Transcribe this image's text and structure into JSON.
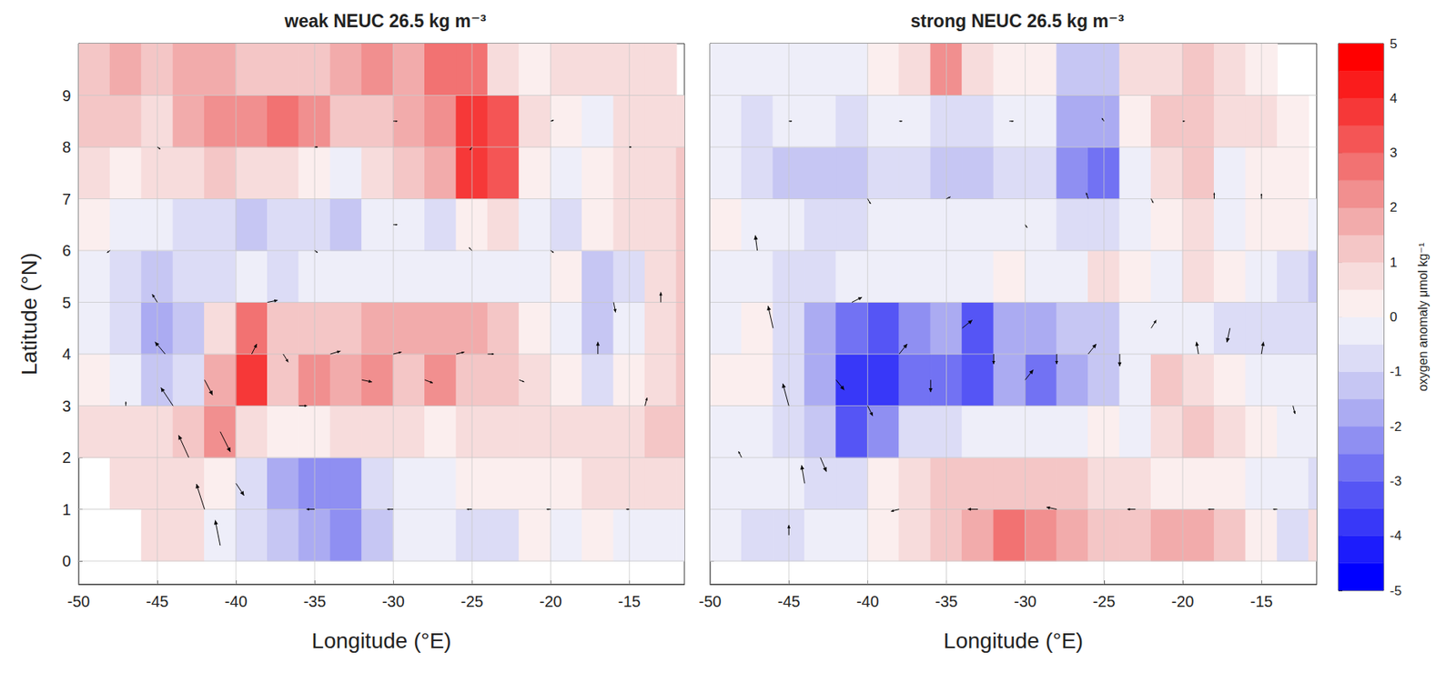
{
  "chart_data": [
    {
      "type": "heatmap",
      "title": "weak NEUC 26.5 kg m⁻³",
      "xlabel": "Longitude (°E)",
      "ylabel": "Latitude (°N)",
      "xlim": [
        -50,
        -11.5
      ],
      "ylim": [
        -0.45,
        10
      ],
      "xticks": [
        -50,
        -45,
        -40,
        -35,
        -30,
        -25,
        -20,
        -15
      ],
      "yticks": [
        0,
        1,
        2,
        3,
        4,
        5,
        6,
        7,
        8,
        9
      ],
      "grid": true,
      "lon": [
        -49,
        -47,
        -45,
        -43,
        -41,
        -39,
        -37,
        -35,
        -33,
        -31,
        -29,
        -27,
        -25,
        -23,
        -21,
        -19,
        -17,
        -15,
        -13,
        -11
      ],
      "lat": [
        0.5,
        1.5,
        2.5,
        3.5,
        4.5,
        5.5,
        6.5,
        7.5,
        8.5,
        9.5
      ],
      "oxygen_anomaly": [
        [
          null,
          null,
          0.5,
          0.5,
          -0.5,
          -1,
          -1.5,
          -2,
          -2.5,
          -1.5,
          -0.5,
          -0.5,
          -1,
          -1,
          0,
          -0.5,
          0,
          -0.5,
          -0.5,
          -0.5
        ],
        [
          null,
          0.5,
          0.5,
          0.5,
          0,
          -1,
          -2,
          -2.5,
          -2.5,
          -1,
          -0.5,
          -0.5,
          0,
          0,
          0,
          0,
          0.5,
          0.5,
          0.5,
          0.5
        ],
        [
          0.5,
          0.5,
          0.5,
          1,
          2,
          0.5,
          0,
          0,
          0.5,
          0.5,
          0.5,
          0,
          0.5,
          0.5,
          0.5,
          0.5,
          0.5,
          0.5,
          1,
          1
        ],
        [
          0,
          -0.5,
          -1.5,
          -1,
          1.5,
          3.5,
          1,
          2,
          1.5,
          2,
          1,
          2,
          1,
          1,
          0.5,
          0,
          -1,
          0,
          0.5,
          1
        ],
        [
          -0.5,
          -1,
          -2,
          -1.5,
          0.5,
          2.5,
          1,
          1,
          1,
          1.5,
          1.5,
          1.5,
          1.5,
          1,
          0,
          -0.5,
          -1.5,
          -0.5,
          0.5,
          1
        ],
        [
          -0.5,
          -1,
          -1.5,
          -1,
          -1,
          -0.5,
          -1,
          -0.5,
          -0.5,
          -0.5,
          -0.5,
          -0.5,
          -0.5,
          -0.5,
          -0.5,
          0,
          -1.5,
          -1,
          0.5,
          1
        ],
        [
          0,
          -0.5,
          -0.5,
          -1,
          -1,
          -1.5,
          -1,
          -1,
          -1.5,
          -0.5,
          -0.5,
          -1,
          0,
          0.5,
          -0.5,
          -1,
          0,
          0.5,
          0.5,
          1
        ],
        [
          0.5,
          0,
          0.5,
          0.5,
          1,
          0.5,
          0.5,
          0,
          -0.5,
          0.5,
          1,
          1.5,
          3.5,
          3,
          0,
          -0.5,
          0,
          0.5,
          0.5,
          1
        ],
        [
          1,
          1,
          0.5,
          1.5,
          2,
          2,
          2.5,
          2,
          1,
          1,
          1.5,
          2,
          3.5,
          3,
          0.5,
          0,
          -0.5,
          0.5,
          0.5,
          0.5
        ],
        [
          1,
          1.5,
          1,
          1.5,
          1.5,
          1,
          1,
          1,
          1.5,
          2,
          1.5,
          2.5,
          2.5,
          0.5,
          0,
          0.5,
          0.5,
          0.5,
          0.5,
          null
        ]
      ],
      "vectors": {
        "lon": [
          -41,
          -42,
          -43,
          -44,
          -44.5,
          -45,
          -42,
          -41,
          -40,
          -39,
          -38,
          -37,
          -36,
          -34,
          -32,
          -30,
          -28,
          -26,
          -24,
          -22,
          -35,
          -30,
          -25,
          -20,
          -15,
          -35,
          -30,
          -25,
          -20,
          -17,
          -16,
          -14,
          -35,
          -30,
          -25,
          -20,
          -15,
          -45,
          -48,
          -47,
          -13
        ],
        "lat": [
          0.3,
          1,
          2,
          3,
          4,
          5,
          3.5,
          2.5,
          1.5,
          4,
          5,
          4,
          3,
          4,
          3.5,
          4,
          3.5,
          4,
          4,
          3.5,
          1,
          1,
          1,
          1,
          1,
          6,
          6.5,
          6,
          6,
          4,
          5,
          3,
          8,
          8.5,
          8,
          8.5,
          8,
          8,
          6,
          3,
          5
        ],
        "u": [
          -5,
          -8,
          -10,
          -12,
          -10,
          -5,
          8,
          10,
          8,
          5,
          10,
          5,
          8,
          10,
          10,
          8,
          8,
          8,
          6,
          5,
          -8,
          -6,
          -5,
          -4,
          -3,
          3,
          4,
          -3,
          3,
          0,
          2,
          2,
          3,
          4,
          -2,
          3,
          2,
          3,
          -3,
          0,
          0
        ],
        "v": [
          25,
          25,
          22,
          18,
          12,
          8,
          -15,
          -20,
          -12,
          10,
          2,
          -8,
          0,
          3,
          -2,
          2,
          -3,
          2,
          0,
          -2,
          0,
          0,
          0,
          0,
          0,
          -2,
          0,
          3,
          -2,
          12,
          -10,
          8,
          0,
          0,
          -3,
          1,
          0,
          -2,
          -2,
          4,
          10
        ]
      }
    },
    {
      "type": "heatmap",
      "title": "strong NEUC 26.5 kg m⁻³",
      "xlabel": "Longitude (°E)",
      "xlim": [
        -50,
        -11.5
      ],
      "ylim": [
        -0.45,
        10
      ],
      "xticks": [
        -50,
        -45,
        -40,
        -35,
        -30,
        -25,
        -20,
        -15
      ],
      "yticks": [
        0,
        1,
        2,
        3,
        4,
        5,
        6,
        7,
        8,
        9
      ],
      "grid": true,
      "tick_labels": "x",
      "lon": [
        -49,
        -47,
        -45,
        -43,
        -41,
        -39,
        -37,
        -35,
        -33,
        -31,
        -29,
        -27,
        -25,
        -23,
        -21,
        -19,
        -17,
        -15,
        -13,
        -11
      ],
      "lat": [
        0.5,
        1.5,
        2.5,
        3.5,
        4.5,
        5.5,
        6.5,
        7.5,
        8.5,
        9.5
      ],
      "oxygen_anomaly": [
        [
          -0.5,
          -1,
          -1,
          -0.5,
          -0.5,
          0,
          0.5,
          1,
          1.5,
          2.5,
          2,
          1.5,
          1,
          1,
          1.5,
          1.5,
          1,
          0,
          -1,
          0.5
        ],
        [
          -0.5,
          -0.5,
          -0.5,
          -1,
          -1,
          0,
          0.5,
          1,
          1,
          1,
          1,
          1,
          0.5,
          0.5,
          0,
          0,
          0,
          -0.5,
          -0.5,
          -1
        ],
        [
          -0.5,
          -0.5,
          -1,
          -1.5,
          -3.5,
          -2.5,
          -1,
          -1,
          -0.5,
          -0.5,
          -0.5,
          -0.5,
          0,
          -0.5,
          0.5,
          1,
          0.5,
          0,
          -0.5,
          -0.5
        ],
        [
          0,
          0,
          -1,
          -2,
          -4,
          -4,
          -3,
          -3,
          -3.5,
          -2,
          -3,
          -2,
          -1.5,
          -0.5,
          1,
          0.5,
          0,
          -0.5,
          -0.5,
          -0.5
        ],
        [
          -0.5,
          0,
          -1,
          -2,
          -3,
          -3.5,
          -2.5,
          -2,
          -3.5,
          -2,
          -2,
          -1.5,
          -1.5,
          -0.5,
          -0.5,
          -0.5,
          -1,
          -1,
          -1,
          -1
        ],
        [
          -0.5,
          -0.5,
          -1,
          -1,
          -0.5,
          -0.5,
          -0.5,
          -0.5,
          -0.5,
          0,
          -0.5,
          -0.5,
          0.5,
          0,
          -0.5,
          0.5,
          0,
          -0.5,
          -1,
          -1.5
        ],
        [
          0,
          -0.5,
          -0.5,
          -1,
          -1,
          -0.5,
          -0.5,
          -0.5,
          -0.5,
          -0.5,
          -0.5,
          -1,
          -1,
          -0.5,
          0,
          0.5,
          -0.5,
          0,
          0,
          -0.5
        ],
        [
          -0.5,
          -1,
          -1.5,
          -1.5,
          -1.5,
          -1,
          -1,
          -1.5,
          -1.5,
          -1,
          -1,
          -2.5,
          -3,
          -0.5,
          0.5,
          1,
          -0.5,
          0,
          0,
          null
        ],
        [
          -0.5,
          -1,
          -0.5,
          -0.5,
          -1,
          -0.5,
          -0.5,
          -1,
          -1,
          -0.5,
          -0.5,
          -2,
          -2,
          0,
          1,
          1,
          0.5,
          0.5,
          0,
          null
        ],
        [
          -0.5,
          -0.5,
          -0.5,
          -0.5,
          -0.5,
          0,
          0.5,
          2,
          0.5,
          0,
          0,
          -1.5,
          -1.5,
          0.5,
          0.5,
          1,
          0.5,
          0,
          null,
          null
        ]
      ],
      "vectors": {
        "lon": [
          -45,
          -44,
          -45,
          -46,
          -47,
          -43,
          -42,
          -41,
          -40,
          -38,
          -36,
          -34,
          -32,
          -30,
          -28,
          -26,
          -24,
          -22,
          -19,
          -17,
          -15,
          -13,
          -38,
          -33,
          -28,
          -23,
          -18,
          -14,
          -40,
          -35,
          -30,
          -26,
          -22,
          -18,
          -45,
          -38,
          -31,
          -25,
          -20,
          -15,
          -48
        ],
        "lat": [
          0.5,
          1.5,
          3,
          4.5,
          6,
          2,
          3.5,
          5,
          3,
          4,
          3.5,
          4.5,
          4,
          3.5,
          4,
          4,
          4,
          4.5,
          4,
          4.5,
          4,
          3,
          1,
          1,
          1,
          1,
          1,
          1,
          7,
          7,
          6.5,
          7,
          7,
          7,
          8.5,
          8.5,
          8.5,
          8.5,
          8.5,
          7,
          2
        ],
        "u": [
          0,
          -3,
          -6,
          -5,
          -2,
          6,
          8,
          10,
          5,
          8,
          0,
          10,
          0,
          8,
          0,
          8,
          0,
          5,
          -2,
          -3,
          2,
          2,
          -8,
          -10,
          -10,
          -8,
          -6,
          -4,
          3,
          4,
          2,
          -2,
          2,
          0,
          3,
          3,
          4,
          -2,
          2,
          0,
          -3
        ],
        "v": [
          10,
          18,
          22,
          22,
          15,
          -14,
          -10,
          5,
          -10,
          10,
          -12,
          8,
          -10,
          10,
          -10,
          10,
          -12,
          8,
          12,
          -14,
          12,
          -8,
          -2,
          0,
          2,
          0,
          0,
          0,
          -5,
          2,
          -3,
          6,
          -4,
          6,
          0,
          0,
          0,
          3,
          0,
          5,
          6
        ]
      }
    }
  ],
  "colorbar": {
    "label": "oxygen anomaly μmol kg⁻¹",
    "range": [
      -5,
      5
    ],
    "ticks": [
      -5,
      -4,
      -3,
      -2,
      -1,
      0,
      1,
      2,
      3,
      4,
      5
    ],
    "levels": [
      -5,
      -4.5,
      -4,
      -3.5,
      -3,
      -2.5,
      -2,
      -1.5,
      -1,
      -0.5,
      0,
      0.5,
      1,
      1.5,
      2,
      2.5,
      3,
      3.5,
      4,
      4.5,
      5
    ],
    "colors": [
      "#0000ff",
      "#1c1cfc",
      "#3838f8",
      "#5555f5",
      "#7272f3",
      "#8f8ff2",
      "#ababf2",
      "#c6c6f3",
      "#dcdcf6",
      "#eeeef9",
      "#fbeeee",
      "#f7dcdc",
      "#f4c6c6",
      "#f2abab",
      "#f18f8f",
      "#f27272",
      "#f45555",
      "#f63838",
      "#fa1c1c",
      "#ff0000"
    ]
  }
}
